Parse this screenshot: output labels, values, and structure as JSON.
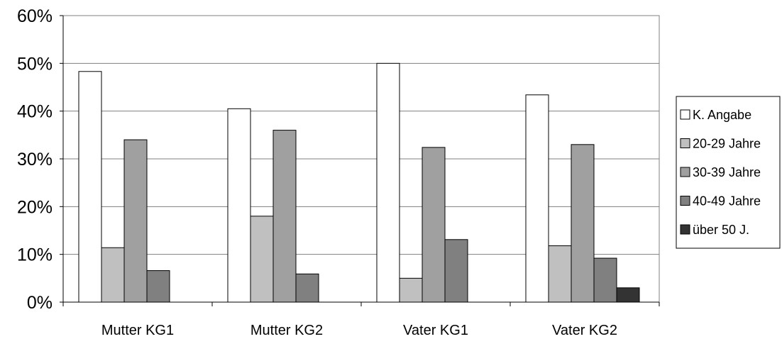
{
  "chart_data": {
    "type": "bar",
    "title": "",
    "xlabel": "",
    "ylabel": "",
    "ylim": [
      0,
      60
    ],
    "y_ticks": [
      "0%",
      "10%",
      "20%",
      "30%",
      "40%",
      "50%",
      "60%"
    ],
    "grid": true,
    "legend_position": "right",
    "categories": [
      "Mutter KG1",
      "Mutter KG2",
      "Vater KG1",
      "Vater KG2"
    ],
    "series": [
      {
        "name": "K. Angabe",
        "color": "#ffffff",
        "values": [
          48.3,
          40.5,
          50.0,
          43.4
        ]
      },
      {
        "name": "20-29 Jahre",
        "color": "#c0c0c0",
        "values": [
          11.4,
          18.0,
          5.0,
          11.8
        ]
      },
      {
        "name": "30-39 Jahre",
        "color": "#a0a0a0",
        "values": [
          34.0,
          36.0,
          32.4,
          33.0
        ]
      },
      {
        "name": "40-49 Jahre",
        "color": "#808080",
        "values": [
          6.6,
          5.9,
          13.1,
          9.2
        ]
      },
      {
        "name": "über 50 J.",
        "color": "#333333",
        "values": [
          0,
          0,
          0,
          3.0
        ]
      }
    ]
  }
}
